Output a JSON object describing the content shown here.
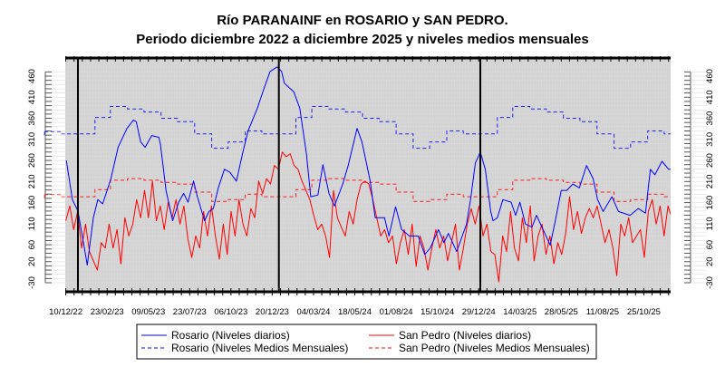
{
  "chart_data": {
    "type": "line",
    "title": "Río PARANAINF en ROSARIO y SAN PEDRO.",
    "subtitle": "Periodo diciembre 2022 a diciembre 2025 y niveles medios mensuales",
    "x_unit": "days since 2023-01-01",
    "xlim": [
      -23,
      1079
    ],
    "ylim": [
      -54,
      510
    ],
    "grid": true,
    "year_lines_days": [
      0,
      365,
      731
    ],
    "x_ticks": [
      {
        "day": -22,
        "label": "10/12/22"
      },
      {
        "day": 53,
        "label": "23/02/23"
      },
      {
        "day": 128,
        "label": "09/05/23"
      },
      {
        "day": 203,
        "label": "23/07/23"
      },
      {
        "day": 278,
        "label": "06/10/23"
      },
      {
        "day": 353,
        "label": "20/12/23"
      },
      {
        "day": 428,
        "label": "04/03/24"
      },
      {
        "day": 503,
        "label": "18/05/24"
      },
      {
        "day": 578,
        "label": "01/08/24"
      },
      {
        "day": 653,
        "label": "15/10/24"
      },
      {
        "day": 728,
        "label": "29/12/24"
      },
      {
        "day": 803,
        "label": "14/03/25"
      },
      {
        "day": 878,
        "label": "28/05/25"
      },
      {
        "day": 953,
        "label": "11/08/25"
      },
      {
        "day": 1028,
        "label": "25/10/25"
      }
    ],
    "y_ticks": [
      {
        "value": 460,
        "label": "460"
      },
      {
        "value": 410,
        "label": "410"
      },
      {
        "value": 360,
        "label": "360"
      },
      {
        "value": 310,
        "label": "310"
      },
      {
        "value": 260,
        "label": "260"
      },
      {
        "value": 210,
        "label": "210"
      },
      {
        "value": 160,
        "label": "160"
      },
      {
        "value": 110,
        "label": "110"
      },
      {
        "value": 60,
        "label": "60"
      },
      {
        "value": 20,
        "label": "20"
      },
      {
        "value": -30,
        "label": "-30"
      }
    ],
    "legend_position": "bottom",
    "series": [
      {
        "name": "Rosario (Niveles diarios)",
        "color": "#0000ff",
        "style": "solid",
        "points": [
          [
            -21,
            260
          ],
          [
            -10,
            167
          ],
          [
            0,
            140
          ],
          [
            7,
            87
          ],
          [
            17,
            12
          ],
          [
            28,
            124
          ],
          [
            36,
            167
          ],
          [
            45,
            157
          ],
          [
            60,
            217
          ],
          [
            73,
            291
          ],
          [
            89,
            336
          ],
          [
            101,
            356
          ],
          [
            106,
            352
          ],
          [
            114,
            304
          ],
          [
            122,
            291
          ],
          [
            134,
            319
          ],
          [
            147,
            315
          ],
          [
            150,
            297
          ],
          [
            160,
            189
          ],
          [
            172,
            117
          ],
          [
            183,
            161
          ],
          [
            192,
            182
          ],
          [
            200,
            161
          ],
          [
            210,
            211
          ],
          [
            217,
            174
          ],
          [
            230,
            117
          ],
          [
            238,
            139
          ],
          [
            246,
            146
          ],
          [
            255,
            195
          ],
          [
            266,
            239
          ],
          [
            276,
            232
          ],
          [
            288,
            211
          ],
          [
            299,
            276
          ],
          [
            309,
            330
          ],
          [
            326,
            384
          ],
          [
            337,
            427
          ],
          [
            349,
            471
          ],
          [
            362,
            482
          ],
          [
            370,
            471
          ],
          [
            375,
            443
          ],
          [
            392,
            423
          ],
          [
            403,
            384
          ],
          [
            415,
            276
          ],
          [
            423,
            174
          ],
          [
            436,
            178
          ],
          [
            445,
            250
          ],
          [
            456,
            182
          ],
          [
            466,
            152
          ],
          [
            481,
            204
          ],
          [
            491,
            248
          ],
          [
            507,
            336
          ],
          [
            516,
            304
          ],
          [
            531,
            211
          ],
          [
            540,
            124
          ],
          [
            557,
            124
          ],
          [
            565,
            81
          ],
          [
            577,
            150
          ],
          [
            588,
            96
          ],
          [
            602,
            81
          ],
          [
            618,
            81
          ],
          [
            630,
            37
          ],
          [
            640,
            52
          ],
          [
            655,
            96
          ],
          [
            665,
            65
          ],
          [
            673,
            87
          ],
          [
            688,
            44
          ],
          [
            706,
            109
          ],
          [
            714,
            174
          ],
          [
            722,
            254
          ],
          [
            731,
            280
          ],
          [
            740,
            239
          ],
          [
            750,
            139
          ],
          [
            754,
            117
          ],
          [
            762,
            124
          ],
          [
            772,
            167
          ],
          [
            787,
            161
          ],
          [
            795,
            130
          ],
          [
            803,
            161
          ],
          [
            813,
            109
          ],
          [
            825,
            102
          ],
          [
            833,
            130
          ],
          [
            845,
            96
          ],
          [
            858,
            59
          ],
          [
            866,
            109
          ],
          [
            878,
            189
          ],
          [
            888,
            189
          ],
          [
            899,
            204
          ],
          [
            911,
            195
          ],
          [
            924,
            248
          ],
          [
            936,
            217
          ],
          [
            944,
            167
          ],
          [
            954,
            139
          ],
          [
            970,
            174
          ],
          [
            982,
            139
          ],
          [
            1003,
            130
          ],
          [
            1018,
            146
          ],
          [
            1031,
            135
          ],
          [
            1040,
            239
          ],
          [
            1048,
            226
          ],
          [
            1061,
            258
          ],
          [
            1073,
            239
          ],
          [
            1079,
            239
          ]
        ]
      },
      {
        "name": "San Pedro (Niveles diarios)",
        "color": "#ff0000",
        "style": "solid",
        "start_day": -22,
        "step_days": 7.15,
        "values": [
          117,
          152,
          96,
          139,
          52,
          109,
          44,
          22,
          0,
          65,
          52,
          109,
          52,
          96,
          15,
          124,
          81,
          109,
          167,
          124,
          189,
          124,
          211,
          117,
          152,
          96,
          161,
          124,
          167,
          109,
          152,
          74,
          30,
          81,
          52,
          139,
          81,
          152,
          81,
          26,
          109,
          37,
          139,
          81,
          167,
          109,
          81,
          146,
          124,
          211,
          182,
          217,
          204,
          248,
          239,
          280,
          269,
          276,
          248,
          239,
          211,
          189,
          167,
          130,
          96,
          109,
          81,
          30,
          189,
          124,
          102,
          81,
          139,
          109,
          167,
          204,
          211,
          204,
          167,
          124,
          81,
          96,
          65,
          81,
          15,
          65,
          96,
          37,
          109,
          9,
          81,
          52,
          0,
          52,
          96,
          52,
          81,
          22,
          65,
          109,
          0,
          52,
          109,
          146,
          109,
          152,
          81,
          109,
          44,
          37,
          -28,
          81,
          44,
          139,
          52,
          22,
          124,
          65,
          152,
          22,
          81,
          109,
          37,
          81,
          15,
          65,
          37,
          87,
          174,
          96,
          139,
          87,
          124,
          146,
          124,
          152,
          109,
          65,
          96,
          52,
          -13,
          109,
          81,
          124,
          65,
          81,
          96,
          30,
          139,
          167,
          109,
          152,
          81,
          152,
          124
        ]
      },
      {
        "name": "Rosario (Niveles Medios Mensuales)",
        "color": "#0000ff",
        "style": "dashed",
        "monthly_jan_to_dec": [
          323,
          362,
          388,
          382,
          375,
          360,
          352,
          323,
          289,
          304,
          330,
          323
        ]
      },
      {
        "name": "San Pedro (Niveles Medios Mensuales)",
        "color": "#ff0000",
        "style": "dashed",
        "monthly_jan_to_dec": [
          174,
          191,
          213,
          217,
          213,
          208,
          204,
          185,
          163,
          167,
          180,
          174
        ]
      }
    ]
  }
}
